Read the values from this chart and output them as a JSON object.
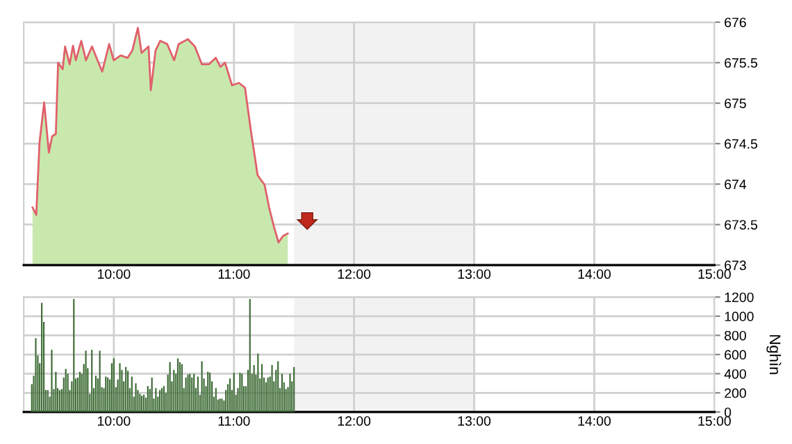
{
  "chart_data": [
    {
      "type": "area",
      "xlim": [
        9.25,
        15
      ],
      "ylim": [
        673,
        676
      ],
      "yticks": [
        673,
        673.5,
        674,
        674.5,
        675,
        675.5,
        676
      ],
      "xticks": [
        {
          "value": 10,
          "label": "10:00"
        },
        {
          "value": 11,
          "label": "11:00"
        },
        {
          "value": 12,
          "label": "12:00"
        },
        {
          "value": 13,
          "label": "13:00"
        },
        {
          "value": 14,
          "label": "14:00"
        },
        {
          "value": 15,
          "label": "15:00"
        }
      ],
      "grid": true,
      "bands": [
        {
          "axis": "x",
          "from": 11.5,
          "to": 13,
          "color": "#f2f2f2"
        }
      ],
      "series": [
        {
          "color": "#c8e8ae",
          "x": [
            9.323,
            9.354,
            9.381,
            9.42,
            9.459,
            9.486,
            9.517,
            9.536,
            9.574,
            9.594,
            9.632,
            9.66,
            9.683,
            9.729,
            9.768,
            9.818,
            9.864,
            9.903,
            9.961,
            9.999,
            10.057,
            10.115,
            10.154,
            10.2,
            10.231,
            10.289,
            10.308,
            10.347,
            10.386,
            10.444,
            10.502,
            10.54,
            10.617,
            10.675,
            10.733,
            10.791,
            10.849,
            10.887,
            10.926,
            10.984,
            11.042,
            11.092,
            11.139,
            11.197,
            11.255,
            11.293,
            11.332,
            11.371,
            11.409,
            11.448
          ],
          "values": [
            673.71,
            673.62,
            674.51,
            675.01,
            674.39,
            674.59,
            674.62,
            675.5,
            675.42,
            675.7,
            675.48,
            675.71,
            675.53,
            675.77,
            675.53,
            675.7,
            675.53,
            675.39,
            675.73,
            675.53,
            675.59,
            675.56,
            675.65,
            675.93,
            675.62,
            675.7,
            675.16,
            675.65,
            675.77,
            675.73,
            675.53,
            675.73,
            675.79,
            675.7,
            675.48,
            675.48,
            675.56,
            675.45,
            675.5,
            675.22,
            675.25,
            675.19,
            674.68,
            674.11,
            673.99,
            673.71,
            673.48,
            673.28,
            673.36,
            673.39
          ]
        },
        {
          "type": "line",
          "color": "#e0606a",
          "x": [
            9.323,
            9.354,
            9.381,
            9.42,
            9.459,
            9.486,
            9.517,
            9.536,
            9.574,
            9.594,
            9.632,
            9.66,
            9.683,
            9.729,
            9.768,
            9.818,
            9.864,
            9.903,
            9.961,
            9.999,
            10.057,
            10.115,
            10.154,
            10.2,
            10.231,
            10.289,
            10.308,
            10.347,
            10.386,
            10.444,
            10.502,
            10.54,
            10.617,
            10.675,
            10.733,
            10.791,
            10.849,
            10.887,
            10.926,
            10.984,
            11.042,
            11.092,
            11.139,
            11.197,
            11.255,
            11.293,
            11.332,
            11.371,
            11.409,
            11.448
          ],
          "values": [
            673.71,
            673.62,
            674.51,
            675.01,
            674.39,
            674.59,
            674.62,
            675.5,
            675.42,
            675.7,
            675.48,
            675.71,
            675.53,
            675.77,
            675.53,
            675.7,
            675.53,
            675.39,
            675.73,
            675.53,
            675.59,
            675.56,
            675.65,
            675.93,
            675.62,
            675.7,
            675.16,
            675.65,
            675.77,
            675.73,
            675.53,
            675.73,
            675.79,
            675.7,
            675.48,
            675.48,
            675.56,
            675.45,
            675.5,
            675.22,
            675.25,
            675.19,
            674.68,
            674.11,
            673.99,
            673.71,
            673.48,
            673.28,
            673.36,
            673.39
          ]
        }
      ]
    },
    {
      "type": "bar",
      "xlim": [
        9.25,
        15
      ],
      "ylim": [
        0,
        1200
      ],
      "yticks": [
        0,
        200,
        400,
        600,
        800,
        1000,
        1200
      ],
      "ylabel": "Nghìn",
      "xticks": [
        {
          "value": 10,
          "label": "10:00"
        },
        {
          "value": 11,
          "label": "11:00"
        },
        {
          "value": 12,
          "label": "12:00"
        },
        {
          "value": 13,
          "label": "13:00"
        },
        {
          "value": 14,
          "label": "14:00"
        },
        {
          "value": 15,
          "label": "15:00"
        }
      ],
      "grid": true,
      "bands": [
        {
          "axis": "x",
          "from": 11.5,
          "to": 13,
          "color": "#f2f2f2"
        }
      ],
      "series": [
        {
          "color": "#3d6b35",
          "x": [
            9.317,
            9.333,
            9.35,
            9.367,
            9.383,
            9.4,
            9.417,
            9.433,
            9.45,
            9.467,
            9.483,
            9.5,
            9.517,
            9.533,
            9.55,
            9.567,
            9.583,
            9.6,
            9.617,
            9.633,
            9.65,
            9.667,
            9.683,
            9.7,
            9.717,
            9.733,
            9.75,
            9.767,
            9.783,
            9.8,
            9.817,
            9.833,
            9.85,
            9.867,
            9.883,
            9.9,
            9.917,
            9.933,
            9.95,
            9.967,
            9.983,
            10.0,
            10.017,
            10.033,
            10.05,
            10.067,
            10.083,
            10.1,
            10.117,
            10.133,
            10.15,
            10.167,
            10.183,
            10.2,
            10.217,
            10.233,
            10.25,
            10.267,
            10.283,
            10.3,
            10.317,
            10.333,
            10.35,
            10.367,
            10.383,
            10.4,
            10.417,
            10.433,
            10.45,
            10.467,
            10.483,
            10.5,
            10.517,
            10.533,
            10.55,
            10.567,
            10.583,
            10.6,
            10.617,
            10.633,
            10.65,
            10.667,
            10.683,
            10.7,
            10.717,
            10.733,
            10.75,
            10.767,
            10.783,
            10.8,
            10.817,
            10.833,
            10.85,
            10.867,
            10.883,
            10.9,
            10.917,
            10.933,
            10.95,
            10.967,
            10.983,
            11.0,
            11.017,
            11.033,
            11.05,
            11.067,
            11.083,
            11.1,
            11.117,
            11.133,
            11.15,
            11.167,
            11.183,
            11.2,
            11.217,
            11.233,
            11.25,
            11.267,
            11.283,
            11.3,
            11.317,
            11.333,
            11.35,
            11.367,
            11.383,
            11.4,
            11.417,
            11.433,
            11.45,
            11.467,
            11.483,
            11.5
          ],
          "values": [
            290,
            380,
            770,
            590,
            510,
            1140,
            940,
            230,
            230,
            160,
            650,
            240,
            420,
            250,
            230,
            240,
            360,
            450,
            400,
            230,
            320,
            1180,
            350,
            360,
            420,
            400,
            500,
            640,
            460,
            190,
            650,
            250,
            380,
            350,
            640,
            260,
            250,
            370,
            360,
            340,
            510,
            560,
            260,
            340,
            510,
            440,
            320,
            470,
            430,
            250,
            370,
            160,
            300,
            230,
            190,
            170,
            180,
            150,
            270,
            240,
            360,
            140,
            250,
            160,
            230,
            250,
            270,
            200,
            390,
            520,
            320,
            440,
            400,
            560,
            520,
            500,
            250,
            360,
            390,
            400,
            360,
            400,
            250,
            370,
            180,
            530,
            350,
            270,
            420,
            410,
            320,
            160,
            250,
            130,
            140,
            140,
            120,
            230,
            290,
            350,
            230,
            410,
            180,
            250,
            410,
            400,
            270,
            270,
            440,
            1180,
            400,
            490,
            390,
            610,
            350,
            500,
            360,
            310,
            360,
            370,
            490,
            320,
            440,
            530,
            250,
            400,
            310,
            240,
            260,
            400,
            320,
            470
          ]
        }
      ]
    }
  ]
}
